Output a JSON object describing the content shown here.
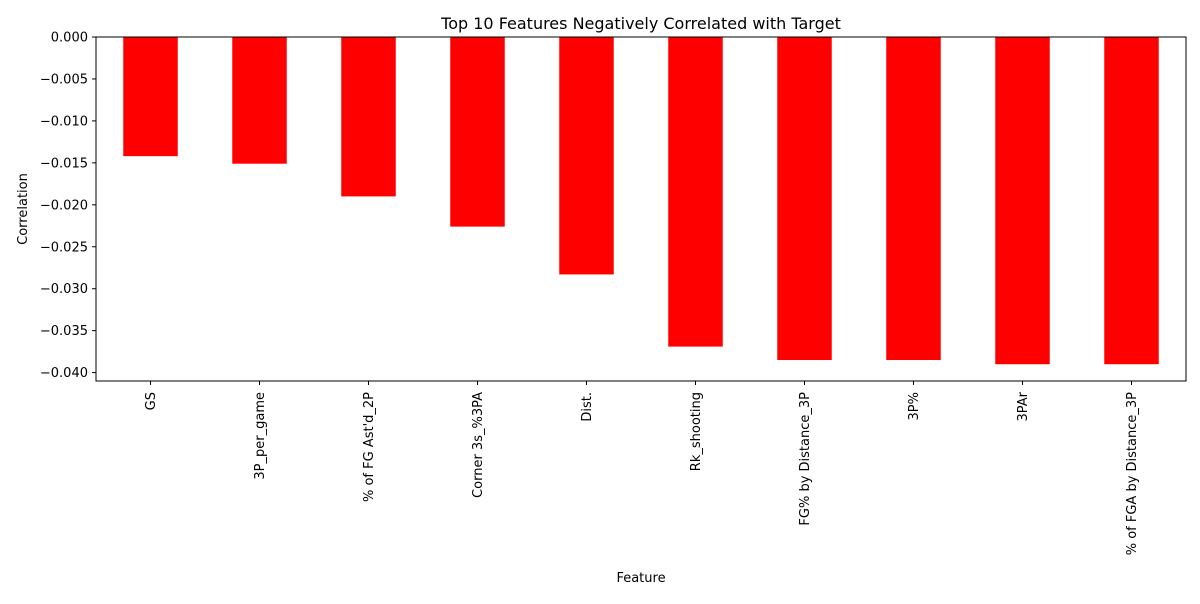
{
  "colors": {
    "bar": "#ff0000",
    "axis": "#000000",
    "background": "#ffffff"
  },
  "chart_data": {
    "type": "bar",
    "title": "Top 10 Features Negatively Correlated with Target",
    "xlabel": "Feature",
    "ylabel": "Correlation",
    "categories": [
      "GS",
      "3P_per_game",
      "% of FG Ast'd_2P",
      "Corner 3s_%3PA",
      "Dist.",
      "Rk_shooting",
      "FG% by Distance_3P",
      "3P%",
      "3PAr",
      "% of FGA by Distance_3P"
    ],
    "values": [
      -0.0142,
      -0.0151,
      -0.019,
      -0.0226,
      -0.0283,
      -0.0369,
      -0.0385,
      -0.0385,
      -0.039,
      -0.039
    ],
    "ylim": [
      -0.041,
      0.0
    ],
    "yticks": [
      0.0,
      -0.005,
      -0.01,
      -0.015,
      -0.02,
      -0.025,
      -0.03,
      -0.035,
      -0.04
    ],
    "ytick_labels": [
      "0.000",
      "−0.005",
      "−0.010",
      "−0.015",
      "−0.020",
      "−0.025",
      "−0.030",
      "−0.035",
      "−0.040"
    ],
    "grid": false,
    "legend": "none"
  }
}
